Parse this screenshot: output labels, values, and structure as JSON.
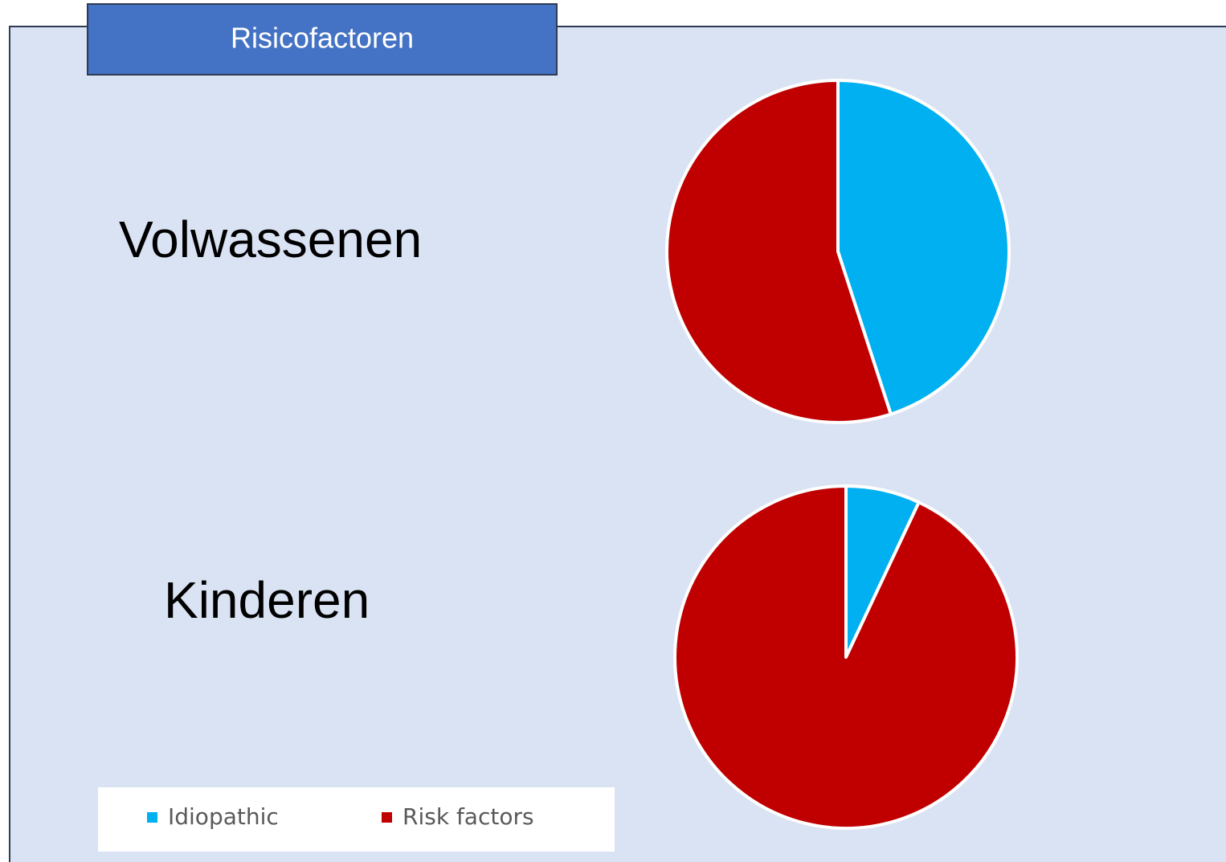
{
  "title": "Risicofactoren",
  "chart_data": [
    {
      "type": "pie",
      "title": "Volwassenen",
      "categories": [
        "Idiopathic",
        "Risk factors"
      ],
      "values": [
        45,
        55
      ],
      "colors": [
        "#00b0f0",
        "#c00000"
      ]
    },
    {
      "type": "pie",
      "title": "Kinderen",
      "categories": [
        "Idiopathic",
        "Risk factors"
      ],
      "values": [
        7,
        93
      ],
      "colors": [
        "#00b0f0",
        "#c00000"
      ]
    }
  ]
}
